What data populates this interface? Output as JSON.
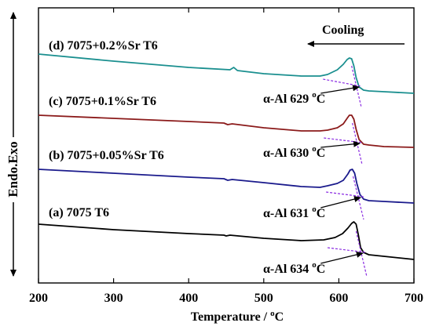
{
  "chart_data": {
    "type": "line",
    "xlabel": "Temperature / ",
    "xlabel_unit_sup": "o",
    "xlabel_unit": "C",
    "ylabel": "Endo.Exo",
    "xlim": [
      200,
      700
    ],
    "xticks": [
      200,
      300,
      400,
      500,
      600,
      700
    ],
    "grid": false,
    "cooling_label": "Cooling",
    "series": [
      {
        "name": "(a) 7075 T6",
        "color": "#000000",
        "annotation": "α-Al 634 ",
        "annotation_sup": "o",
        "annotation_unit": "C",
        "onset_temp": 634,
        "points": [
          [
            200,
            286
          ],
          [
            300,
            293
          ],
          [
            400,
            298
          ],
          [
            447,
            300
          ],
          [
            450,
            301
          ],
          [
            455,
            300
          ],
          [
            500,
            304
          ],
          [
            550,
            307
          ],
          [
            580,
            306
          ],
          [
            595,
            303
          ],
          [
            605,
            298
          ],
          [
            612,
            291
          ],
          [
            617,
            285
          ],
          [
            620,
            283
          ],
          [
            623,
            286
          ],
          [
            626,
            300
          ],
          [
            629,
            316
          ],
          [
            633,
            322
          ],
          [
            640,
            325
          ],
          [
            660,
            327
          ],
          [
            700,
            331
          ]
        ]
      },
      {
        "name": "(b) 7075+0.05%Sr T6",
        "color": "#1a1a8c",
        "annotation": "α-Al 631 ",
        "annotation_sup": "o",
        "annotation_unit": "C",
        "onset_temp": 631,
        "points": [
          [
            200,
            216
          ],
          [
            300,
            221
          ],
          [
            400,
            226
          ],
          [
            447,
            228
          ],
          [
            452,
            230
          ],
          [
            458,
            229
          ],
          [
            500,
            233
          ],
          [
            550,
            238
          ],
          [
            575,
            239
          ],
          [
            585,
            237
          ],
          [
            598,
            234
          ],
          [
            606,
            230
          ],
          [
            612,
            222
          ],
          [
            615,
            217
          ],
          [
            618,
            216
          ],
          [
            621,
            221
          ],
          [
            624,
            234
          ],
          [
            628,
            248
          ],
          [
            633,
            254
          ],
          [
            640,
            256
          ],
          [
            660,
            257
          ],
          [
            700,
            259
          ]
        ]
      },
      {
        "name": "(c) 7075+0.1%Sr T6",
        "color": "#8b1a1a",
        "annotation": "α-Al 630 ",
        "annotation_sup": "o",
        "annotation_unit": "C",
        "onset_temp": 630,
        "points": [
          [
            200,
            147
          ],
          [
            300,
            151
          ],
          [
            400,
            155
          ],
          [
            447,
            157
          ],
          [
            452,
            159
          ],
          [
            458,
            158
          ],
          [
            500,
            163
          ],
          [
            550,
            167
          ],
          [
            575,
            167
          ],
          [
            585,
            166
          ],
          [
            598,
            163
          ],
          [
            606,
            158
          ],
          [
            611,
            151
          ],
          [
            614,
            147
          ],
          [
            617,
            147
          ],
          [
            620,
            152
          ],
          [
            623,
            165
          ],
          [
            627,
            178
          ],
          [
            633,
            184
          ],
          [
            640,
            185
          ],
          [
            660,
            187
          ],
          [
            700,
            188
          ]
        ]
      },
      {
        "name": "(d) 7075+0.2%Sr T6",
        "color": "#1a8f8f",
        "annotation": "α-Al 629 ",
        "annotation_sup": "o",
        "annotation_unit": "C",
        "onset_temp": 629,
        "points": [
          [
            200,
            69
          ],
          [
            300,
            78
          ],
          [
            400,
            86
          ],
          [
            455,
            89
          ],
          [
            460,
            86
          ],
          [
            465,
            90
          ],
          [
            500,
            94
          ],
          [
            550,
            97
          ],
          [
            575,
            97
          ],
          [
            585,
            95
          ],
          [
            598,
            89
          ],
          [
            606,
            82
          ],
          [
            611,
            76
          ],
          [
            614,
            74
          ],
          [
            617,
            75
          ],
          [
            620,
            84
          ],
          [
            623,
            99
          ],
          [
            627,
            111
          ],
          [
            633,
            115
          ],
          [
            640,
            116
          ],
          [
            660,
            117
          ],
          [
            700,
            119
          ]
        ]
      }
    ]
  }
}
